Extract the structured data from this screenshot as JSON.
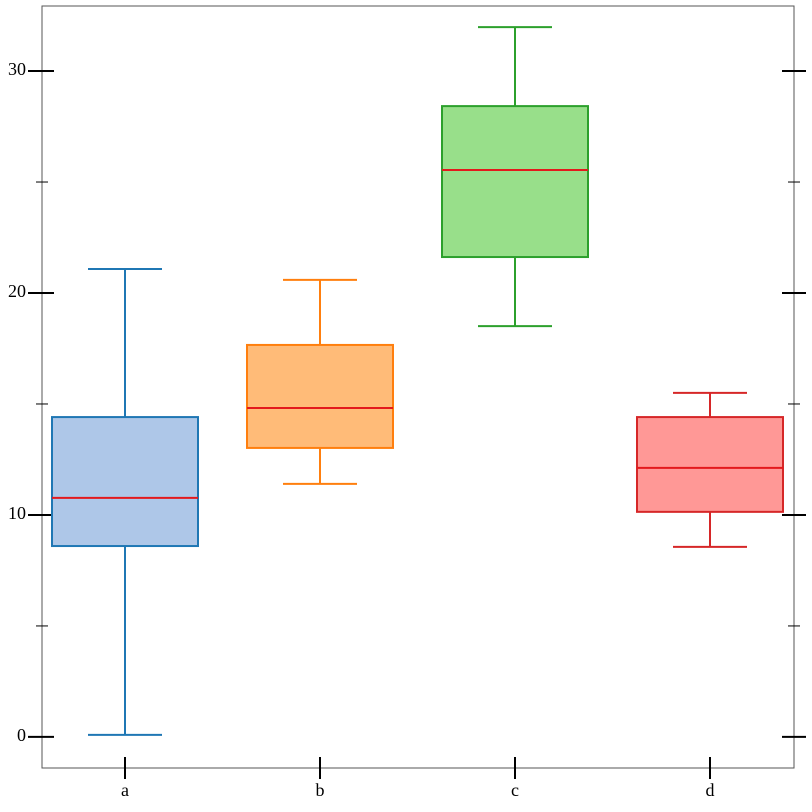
{
  "chart_data": {
    "type": "box",
    "categories": [
      "a",
      "b",
      "c",
      "d"
    ],
    "boxes": [
      {
        "whislo": 0.09,
        "q1": 8.6,
        "med": 10.77,
        "q3": 14.41,
        "whishi": 21.08,
        "color": "#1f77b4",
        "fill": "#aec7e8"
      },
      {
        "whislo": 11.4,
        "q1": 13.02,
        "med": 14.82,
        "q3": 17.66,
        "whishi": 20.59,
        "color": "#ff7f0e",
        "fill": "#ffbb78"
      },
      {
        "whislo": 18.51,
        "q1": 21.62,
        "med": 25.54,
        "q3": 28.42,
        "whishi": 31.98,
        "color": "#2ca02c",
        "fill": "#98df8a"
      },
      {
        "whislo": 8.56,
        "q1": 10.14,
        "med": 12.12,
        "q3": 14.41,
        "whishi": 15.5,
        "color": "#d62728",
        "fill": "#ff9896"
      }
    ],
    "median_color": "#e3191c",
    "ylim": [
      -1.4,
      32.93
    ],
    "yticks": [
      0,
      10,
      20,
      30
    ],
    "minor_yticks": [
      5,
      15,
      25
    ]
  }
}
